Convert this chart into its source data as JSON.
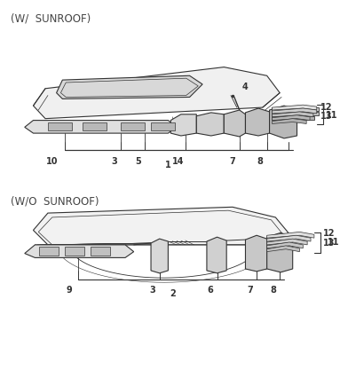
{
  "bg_color": "#ffffff",
  "line_color": "#333333",
  "top_label": "(W/  SUNROOF)",
  "bottom_label": "(W/O  SUNROOF)",
  "font_size_label": 8.5,
  "font_size_num": 7.0
}
